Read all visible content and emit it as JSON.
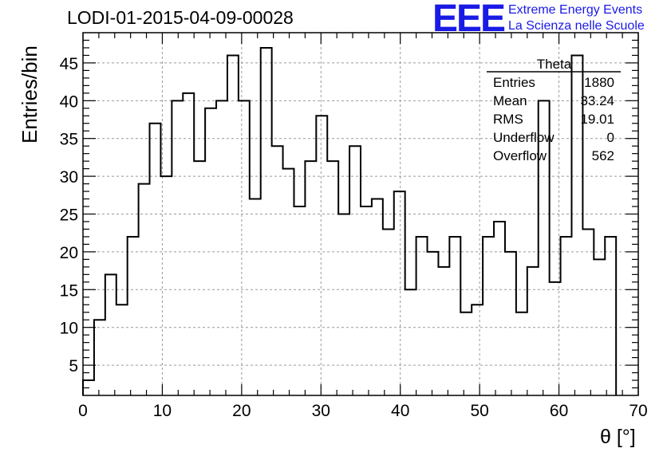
{
  "chart_data": {
    "type": "bar",
    "title": "LODI-01-2015-04-09-00028",
    "xlabel": "θ [°]",
    "ylabel": "Entries/bin",
    "xlim": [
      0,
      70
    ],
    "ylim": [
      1,
      49
    ],
    "grid": true,
    "bin_edges_start": 0,
    "bin_width": 1.4,
    "x_ticks": [
      0,
      10,
      20,
      30,
      40,
      50,
      60,
      70
    ],
    "y_ticks": [
      5,
      10,
      15,
      20,
      25,
      30,
      35,
      40,
      45
    ],
    "values": [
      3,
      11,
      17,
      13,
      22,
      29,
      37,
      30,
      40,
      41,
      32,
      39,
      40,
      46,
      40,
      27,
      47,
      34,
      31,
      26,
      32,
      38,
      32,
      25,
      34,
      26,
      27,
      23,
      28,
      15,
      22,
      20,
      18,
      22,
      12,
      13,
      22,
      24,
      20,
      12,
      18,
      40,
      16,
      22,
      46,
      23,
      19,
      22
    ]
  },
  "stats_box": {
    "title": "Theta",
    "rows": [
      {
        "label": "Entries",
        "value": "1880"
      },
      {
        "label": "Mean",
        "value": "33.24"
      },
      {
        "label": "RMS",
        "value": "19.01"
      },
      {
        "label": "Underflow",
        "value": "0"
      },
      {
        "label": "Overflow",
        "value": "562"
      }
    ]
  },
  "logo": {
    "mark": "EEE",
    "line1": "Extreme Energy Events",
    "line2": "La Scienza nelle Scuole",
    "color": "#1a1ae6"
  },
  "colors": {
    "line": "#000000",
    "grid": "#999999"
  }
}
